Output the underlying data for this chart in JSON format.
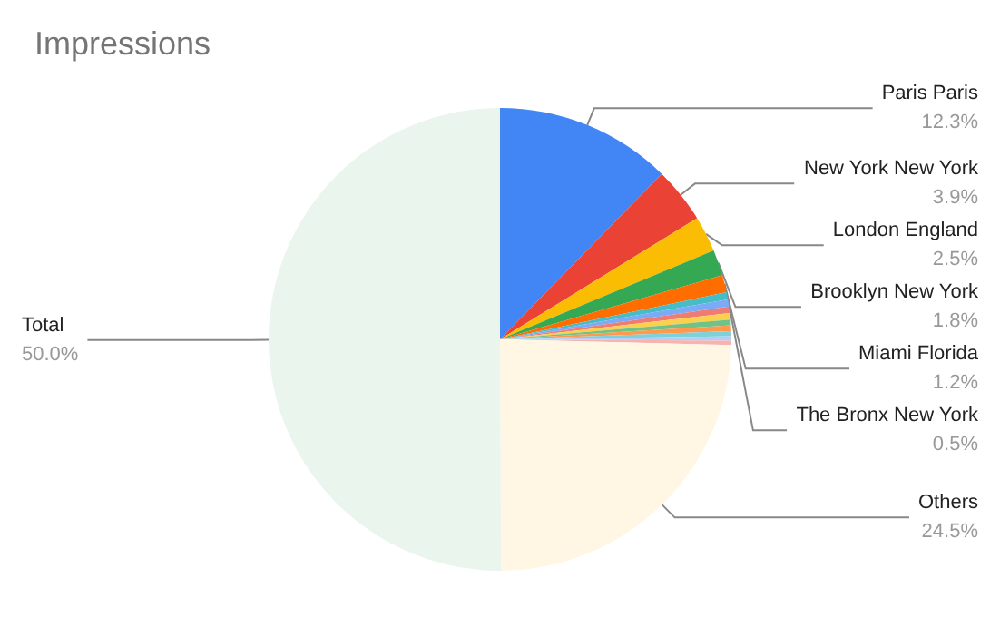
{
  "chart_data": {
    "type": "pie",
    "title": "Impressions",
    "categories": [
      "Paris Paris",
      "New York New York",
      "London England",
      "Brooklyn New York",
      "Miami Florida",
      "The Bronx New York",
      null,
      null,
      null,
      null,
      null,
      null,
      null,
      null,
      "Others",
      "Total"
    ],
    "values": [
      12.3,
      3.9,
      2.5,
      1.8,
      1.2,
      0.5,
      0.5,
      0.45,
      0.45,
      0.4,
      0.4,
      0.35,
      0.3,
      0.3,
      24.5,
      50.0
    ],
    "value_labels": [
      "12.3%",
      "3.9%",
      "2.5%",
      "1.8%",
      "1.2%",
      "0.5%",
      null,
      null,
      null,
      null,
      null,
      null,
      null,
      null,
      "24.5%",
      "50.0%"
    ],
    "colors": [
      "#4285f4",
      "#ea4335",
      "#fbbc04",
      "#34a853",
      "#ff6d01",
      "#46bdc6",
      "#7baaf7",
      "#f07b72",
      "#fcd04f",
      "#71c287",
      "#ff994d",
      "#7ed1d7",
      "#b3cefb",
      "#f7b4ae",
      "#fff6e3",
      "#eaf5ee"
    ],
    "legend": false
  }
}
